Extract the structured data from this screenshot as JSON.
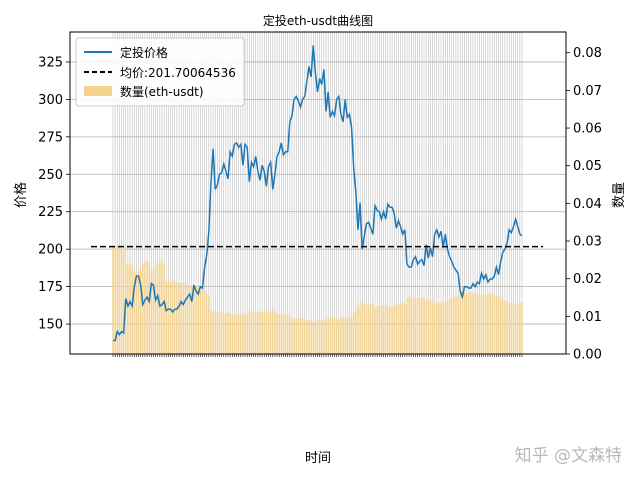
{
  "chart_data": {
    "type": "line",
    "title": "定投eth-usdt曲线图",
    "xlabel": "时间",
    "ylabel": "价格",
    "ylabel_right": "数量",
    "ylim": [
      130,
      345
    ],
    "ylim_right": [
      0.0,
      0.0855
    ],
    "yticks": [
      150,
      175,
      200,
      225,
      250,
      275,
      300,
      325
    ],
    "yticks_right": [
      "0.00",
      "0.01",
      "0.02",
      "0.03",
      "0.04",
      "0.05",
      "0.06",
      "0.07",
      "0.08"
    ],
    "grid": true,
    "legend_position": "top-left",
    "series": [
      {
        "name": "定投价格",
        "type": "line",
        "color": "#1f77b4",
        "values": [
          139,
          139,
          145,
          143,
          145,
          144,
          167,
          162,
          165,
          162,
          175,
          182,
          182,
          176,
          163,
          166,
          168,
          165,
          177,
          176,
          166,
          169,
          162,
          163,
          165,
          159,
          160,
          160,
          158,
          160,
          160,
          162,
          165,
          163,
          166,
          168,
          170,
          165,
          176,
          172,
          170,
          175,
          174,
          188,
          196,
          212,
          245,
          267,
          240,
          243,
          250,
          251,
          257,
          252,
          247,
          265,
          262,
          270,
          271,
          268,
          270,
          256,
          270,
          268,
          245,
          258,
          255,
          262,
          252,
          246,
          256,
          252,
          242,
          255,
          258,
          240,
          250,
          262,
          265,
          271,
          263,
          265,
          265,
          285,
          289,
          300,
          302,
          299,
          295,
          300,
          302,
          312,
          322,
          315,
          336,
          318,
          305,
          314,
          310,
          320,
          292,
          305,
          288,
          292,
          289,
          300,
          302,
          290,
          285,
          300,
          288,
          290,
          281,
          254,
          238,
          213,
          231,
          200,
          209,
          217,
          218,
          214,
          210,
          229,
          226,
          225,
          220,
          225,
          220,
          230,
          228,
          228,
          224,
          214,
          219,
          215,
          210,
          213,
          190,
          188,
          188,
          193,
          195,
          190,
          192,
          193,
          189,
          203,
          194,
          201,
          195,
          210,
          213,
          208,
          212,
          201,
          210,
          200,
          195,
          192,
          188,
          186,
          184,
          172,
          168,
          175,
          175,
          174,
          174,
          177,
          175,
          178,
          177,
          184,
          180,
          183,
          178,
          180,
          180,
          182,
          188,
          183,
          192,
          198,
          200,
          204,
          213,
          211,
          215,
          220,
          215,
          210,
          209
        ]
      },
      {
        "name": "均价:201.70064536",
        "type": "hline",
        "color": "#000000",
        "value": 201.70064536
      },
      {
        "name": "数量(eth-usdt)",
        "type": "bar",
        "axis": "right",
        "color": "#f5d38f",
        "values": [
          0.0288,
          0.0287,
          0.0286,
          0.0284,
          0.0282,
          0.028,
          0.0238,
          0.024,
          0.0242,
          0.0235,
          0.0221,
          0.0217,
          0.022,
          0.0228,
          0.024,
          0.0245,
          0.0246,
          0.0244,
          0.0225,
          0.0221,
          0.0243,
          0.024,
          0.025,
          0.0246,
          0.024,
          0.0199,
          0.019,
          0.0191,
          0.0196,
          0.0192,
          0.0189,
          0.019,
          0.0188,
          0.019,
          0.0188,
          0.0183,
          0.0181,
          0.0187,
          0.0176,
          0.018,
          0.0175,
          0.0176,
          0.0178,
          0.0168,
          0.0161,
          0.0154,
          0.0116,
          0.011,
          0.0115,
          0.0114,
          0.011,
          0.0112,
          0.0108,
          0.011,
          0.0112,
          0.0107,
          0.0108,
          0.0105,
          0.0104,
          0.0106,
          0.0105,
          0.011,
          0.0104,
          0.0106,
          0.0116,
          0.0111,
          0.0112,
          0.0108,
          0.0112,
          0.0115,
          0.0111,
          0.0112,
          0.0117,
          0.0111,
          0.011,
          0.0118,
          0.0113,
          0.0108,
          0.0106,
          0.0104,
          0.0108,
          0.0106,
          0.0106,
          0.0099,
          0.0098,
          0.0094,
          0.0093,
          0.0094,
          0.0096,
          0.0094,
          0.0093,
          0.009,
          0.0088,
          0.0089,
          0.0085,
          0.0089,
          0.0093,
          0.009,
          0.0091,
          0.0088,
          0.0098,
          0.0093,
          0.0099,
          0.0098,
          0.0099,
          0.0094,
          0.0094,
          0.0098,
          0.0099,
          0.0094,
          0.0099,
          0.0098,
          0.0101,
          0.0112,
          0.0119,
          0.0134,
          0.0124,
          0.0143,
          0.0137,
          0.0132,
          0.0131,
          0.0134,
          0.0136,
          0.0125,
          0.0127,
          0.0127,
          0.013,
          0.0127,
          0.013,
          0.0124,
          0.0125,
          0.0125,
          0.0127,
          0.0133,
          0.013,
          0.0133,
          0.0136,
          0.0134,
          0.015,
          0.0152,
          0.0152,
          0.0148,
          0.0146,
          0.015,
          0.0149,
          0.0148,
          0.0151,
          0.0141,
          0.0147,
          0.0142,
          0.0146,
          0.0136,
          0.0134,
          0.0137,
          0.0135,
          0.0142,
          0.0136,
          0.0142,
          0.0146,
          0.0148,
          0.0152,
          0.0153,
          0.0155,
          0.0165,
          0.017,
          0.0163,
          0.0163,
          0.0164,
          0.0164,
          0.0162,
          0.0163,
          0.016,
          0.0161,
          0.0155,
          0.0158,
          0.0156,
          0.0159,
          0.016,
          0.016,
          0.0158,
          0.0152,
          0.0157,
          0.0149,
          0.0144,
          0.0143,
          0.0141,
          0.0135,
          0.0136,
          0.0134,
          0.0131,
          0.0134,
          0.0137,
          0.0138
        ]
      }
    ]
  },
  "watermark": "知乎 @文森特"
}
